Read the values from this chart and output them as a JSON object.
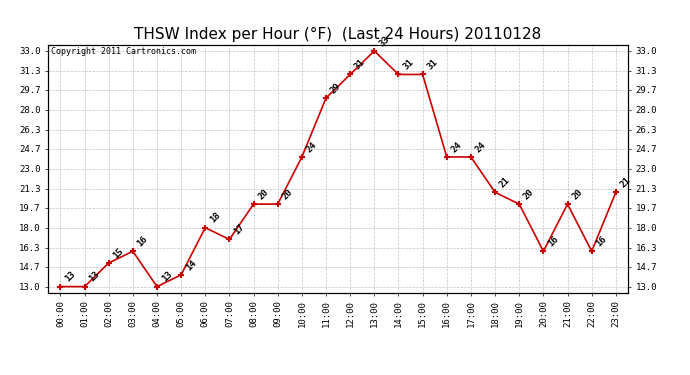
{
  "title": "THSW Index per Hour (°F)  (Last 24 Hours) 20110128",
  "copyright": "Copyright 2011 Cartronics.com",
  "hours": [
    "00:00",
    "01:00",
    "02:00",
    "03:00",
    "04:00",
    "05:00",
    "06:00",
    "07:00",
    "08:00",
    "09:00",
    "10:00",
    "11:00",
    "12:00",
    "13:00",
    "14:00",
    "15:00",
    "16:00",
    "17:00",
    "18:00",
    "19:00",
    "20:00",
    "21:00",
    "22:00",
    "23:00"
  ],
  "values": [
    13,
    13,
    15,
    16,
    13,
    14,
    18,
    17,
    20,
    20,
    24,
    29,
    31,
    33,
    31,
    31,
    24,
    24,
    21,
    20,
    16,
    20,
    16,
    21
  ],
  "line_color": "#cc0000",
  "marker_color": "#cc0000",
  "bg_color": "#ffffff",
  "grid_color": "#bbbbbb",
  "ylim_min": 13.0,
  "ylim_max": 33.0,
  "yticks": [
    13.0,
    14.7,
    16.3,
    18.0,
    19.7,
    21.3,
    23.0,
    24.7,
    26.3,
    28.0,
    29.7,
    31.3,
    33.0
  ],
  "title_fontsize": 11,
  "tick_fontsize": 6.5,
  "label_fontsize": 6.5,
  "copyright_fontsize": 6
}
